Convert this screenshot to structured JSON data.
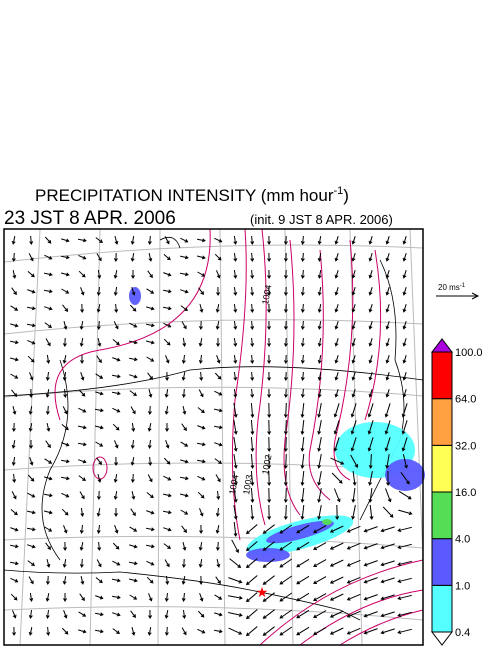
{
  "header": {
    "title": "PRECIPITATION INTENSITY (mm hour",
    "title_exponent": "-1",
    "title_close": ")",
    "valid_time": "23 JST 8 APR. 2006",
    "init_time": "(init. 9 JST 8 APR. 2006)"
  },
  "wind_scale": {
    "label": "20 ms",
    "exponent": "-1"
  },
  "colorbar": {
    "levels": [
      "0.4",
      "1.0",
      "4.0",
      "16.0",
      "32.0",
      "64.0",
      "100.0"
    ],
    "colors": [
      "#ffffff",
      "#55ffff",
      "#5a5aff",
      "#55dd55",
      "#ffff55",
      "#ffa040",
      "#ff0000",
      "#aa00dd"
    ]
  },
  "contour_labels": [
    "1004",
    "1004",
    "1003",
    "1002"
  ]
}
